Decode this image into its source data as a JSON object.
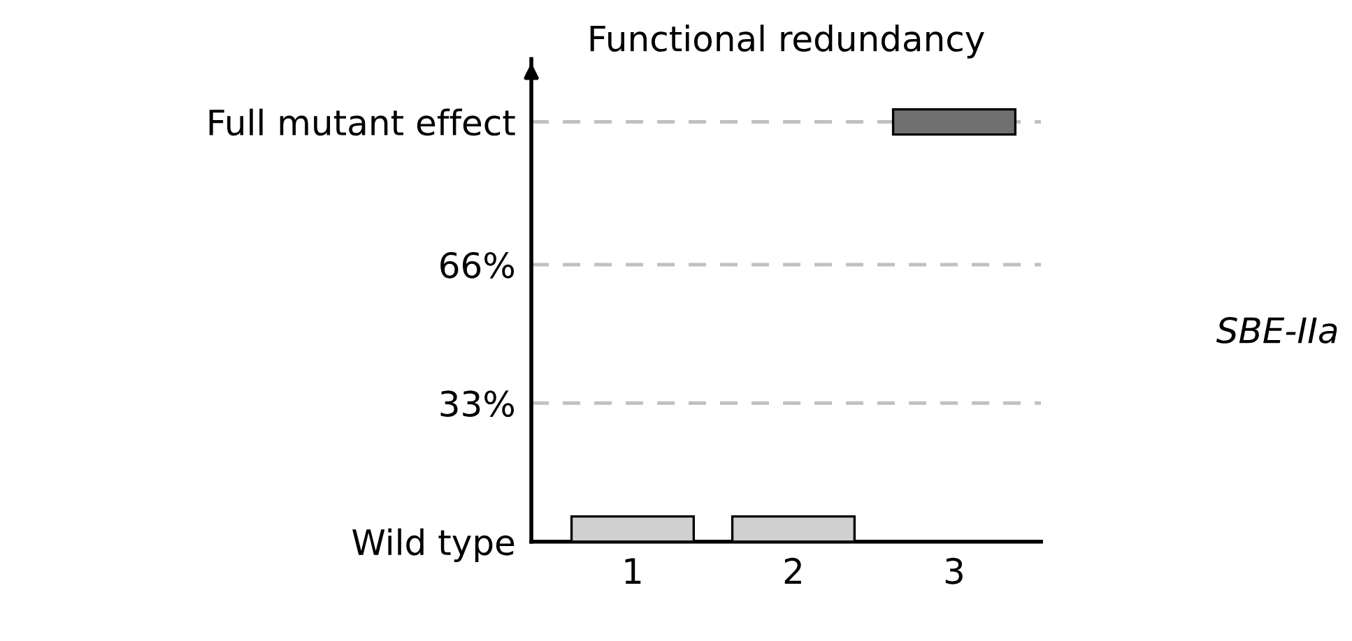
{
  "chart_data": {
    "type": "bar",
    "title": "Functional redundancy",
    "categories": [
      "1",
      "2",
      "3"
    ],
    "values": [
      6,
      6,
      6
    ],
    "base": [
      0,
      0,
      97
    ],
    "colors": [
      "#d0d0d0",
      "#d0d0d0",
      "#707070"
    ],
    "ylim": [
      0,
      115
    ],
    "yticks": [
      {
        "value": 0,
        "label": "Wild type"
      },
      {
        "value": 33,
        "label": "33%"
      },
      {
        "value": 66,
        "label": "66%"
      },
      {
        "value": 100,
        "label": "Full mutant effect"
      }
    ],
    "grid": "y",
    "line_style": "dashed",
    "annotations": [
      "SBE-IIa"
    ]
  }
}
